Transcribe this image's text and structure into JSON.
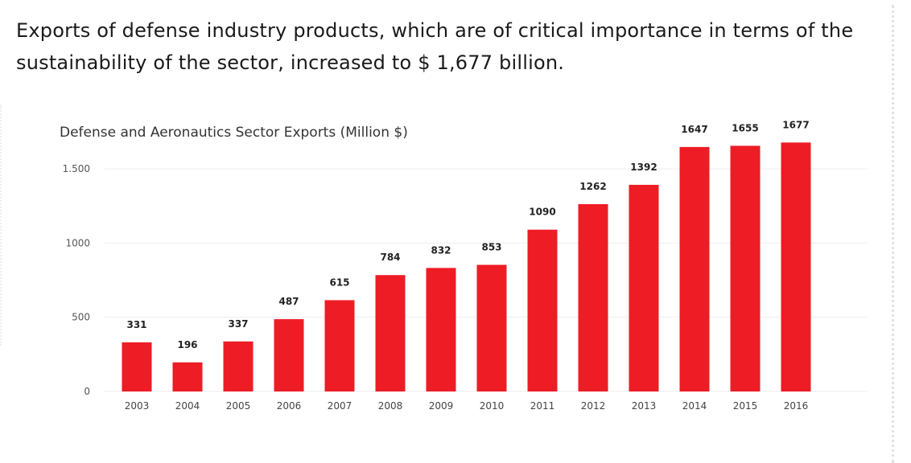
{
  "headline": "Exports of defense industry products, which are of critical importance in terms of the sustainability of the sector, increased to $ 1,677 billion.",
  "colors": {
    "bar": "#ee1c25",
    "grid": "#eeeeee",
    "text": "#1a1a1a"
  },
  "chart_data": {
    "type": "bar",
    "title": "Defense and Aeronautics Sector Exports (Million $)",
    "xlabel": "",
    "ylabel": "",
    "categories": [
      "2003",
      "2004",
      "2005",
      "2006",
      "2007",
      "2008",
      "2009",
      "2010",
      "2011",
      "2012",
      "2013",
      "2014",
      "2015",
      "2016"
    ],
    "values": [
      331,
      196,
      337,
      487,
      615,
      784,
      832,
      853,
      1090,
      1262,
      1392,
      1647,
      1655,
      1677
    ],
    "data_labels": [
      "331",
      "196",
      "337",
      "487",
      "615",
      "784",
      "832",
      "853",
      "1090",
      "1262",
      "1392",
      "1647",
      "1655",
      "1677"
    ],
    "ylim": [
      0,
      1500
    ],
    "yticks": [
      0,
      500,
      1000,
      1500
    ],
    "ytick_labels": [
      "0",
      "500",
      "1000",
      "1.500"
    ],
    "grid": true,
    "legend": "none"
  }
}
